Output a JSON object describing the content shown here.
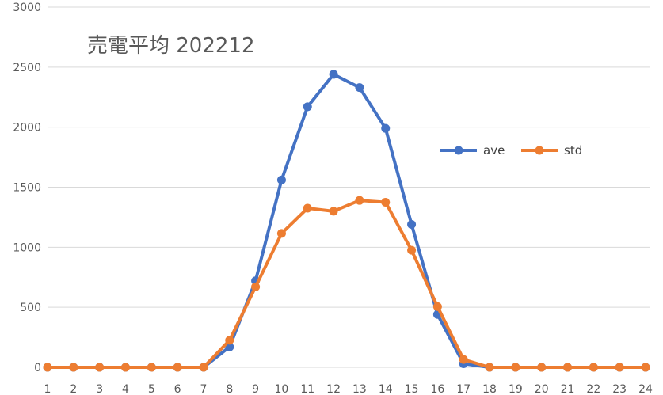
{
  "chart_data": {
    "type": "line",
    "title": "売電平均 202212",
    "x": [
      1,
      2,
      3,
      4,
      5,
      6,
      7,
      8,
      9,
      10,
      11,
      12,
      13,
      14,
      15,
      16,
      17,
      18,
      19,
      20,
      21,
      22,
      23,
      24
    ],
    "ylim": [
      0,
      3000
    ],
    "yticks": [
      0,
      500,
      1000,
      1500,
      2000,
      2500,
      3000
    ],
    "grid": "horizontal",
    "legend": "right",
    "series": [
      {
        "name": "ave",
        "color": "#4472c4",
        "values": [
          0,
          0,
          0,
          0,
          0,
          0,
          0,
          170,
          720,
          1560,
          2170,
          2440,
          2330,
          1990,
          1190,
          440,
          30,
          0,
          0,
          0,
          0,
          0,
          0,
          0
        ]
      },
      {
        "name": "std",
        "color": "#ed7d31",
        "values": [
          0,
          0,
          0,
          0,
          0,
          0,
          0,
          225,
          670,
          1115,
          1325,
          1300,
          1390,
          1375,
          975,
          505,
          65,
          0,
          0,
          0,
          0,
          0,
          0,
          0
        ]
      }
    ]
  }
}
